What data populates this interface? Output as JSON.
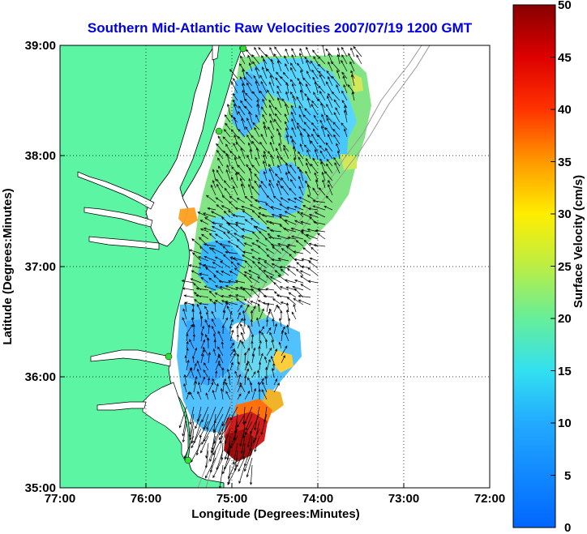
{
  "title": "Southern Mid-Atlantic Raw Velocities 2007/07/19 1200 GMT",
  "x_axis": {
    "label": "Longitude (Degrees:Minutes)",
    "ticks": [
      "77:00",
      "76:00",
      "75:00",
      "74:00",
      "73:00",
      "72:00"
    ]
  },
  "y_axis": {
    "label": "Latitude (Degrees:Minutes)",
    "ticks": [
      "39:00",
      "38:00",
      "37:00",
      "36:00",
      "35:00"
    ]
  },
  "colorbar": {
    "label": "Surface Velocity (cm/s)",
    "ticks": [
      "50",
      "45",
      "40",
      "35",
      "30",
      "25",
      "20",
      "15",
      "10",
      "5",
      "0"
    ],
    "min": 0,
    "max": 50
  },
  "colors": {
    "land": "#5cf5a4",
    "title": "#0000e6",
    "station": "#33dd33",
    "arrow": "#000000"
  },
  "chart_data": {
    "type": "heatmap",
    "title": "Southern Mid-Atlantic Raw Velocities 2007/07/19 1200 GMT",
    "xlabel": "Longitude (Degrees:Minutes)",
    "ylabel": "Latitude (Degrees:Minutes)",
    "xlim": [
      -77,
      -72
    ],
    "ylim": [
      35,
      39
    ],
    "grid": true,
    "colorbar_range": [
      0,
      50
    ]
  }
}
